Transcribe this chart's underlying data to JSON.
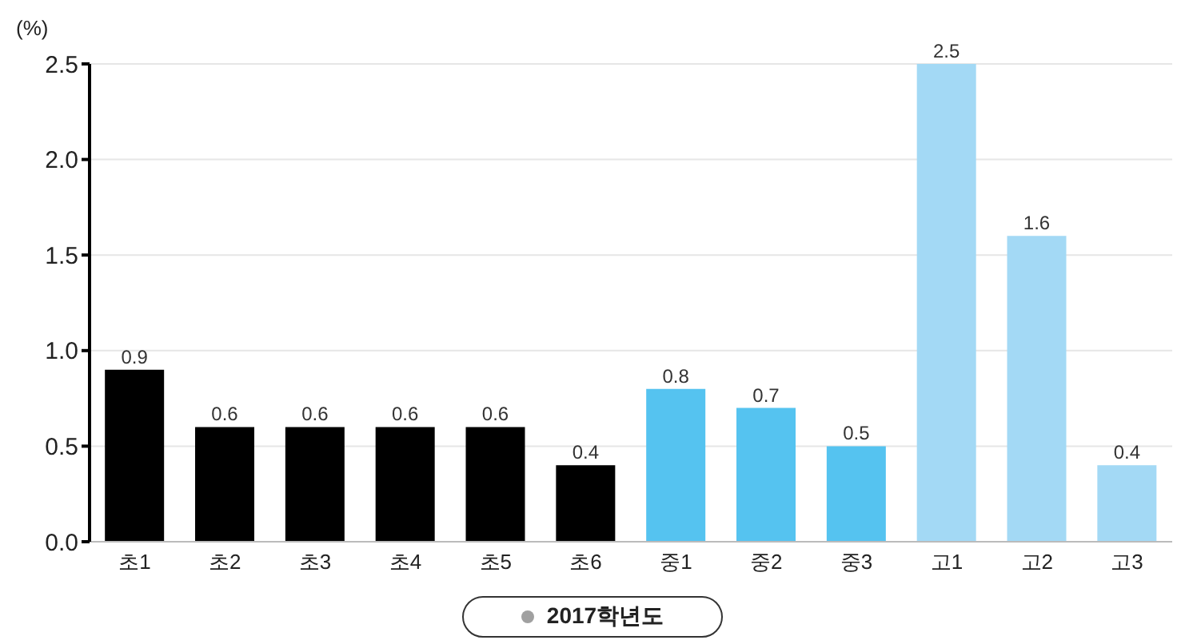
{
  "chart_data": {
    "type": "bar",
    "ylabel": "(%)",
    "categories": [
      "초1",
      "초2",
      "초3",
      "초4",
      "초5",
      "초6",
      "중1",
      "중2",
      "중3",
      "고1",
      "고2",
      "고3"
    ],
    "series": [
      {
        "name": "2017학년도",
        "color": "#a0a0a0",
        "colors": [
          "#000000",
          "#000000",
          "#000000",
          "#000000",
          "#000000",
          "#000000",
          "#55c3f0",
          "#55c3f0",
          "#55c3f0",
          "#a3d9f5",
          "#a3d9f5",
          "#a3d9f5"
        ],
        "values": [
          0.9,
          0.6,
          0.6,
          0.6,
          0.6,
          0.4,
          0.8,
          0.7,
          0.5,
          2.5,
          1.6,
          0.4
        ]
      }
    ],
    "ylim": [
      0,
      2.5
    ],
    "yticks": [
      {
        "value": 0,
        "label": "0.0"
      },
      {
        "value": 0.5,
        "label": "0.5"
      },
      {
        "value": 1,
        "label": "1.0"
      },
      {
        "value": 1.5,
        "label": "1.5"
      },
      {
        "value": 2,
        "label": "2.0"
      },
      {
        "value": 2.5,
        "label": "2.5"
      }
    ],
    "grid": "y",
    "legend": "bottom",
    "data_labels": true
  }
}
